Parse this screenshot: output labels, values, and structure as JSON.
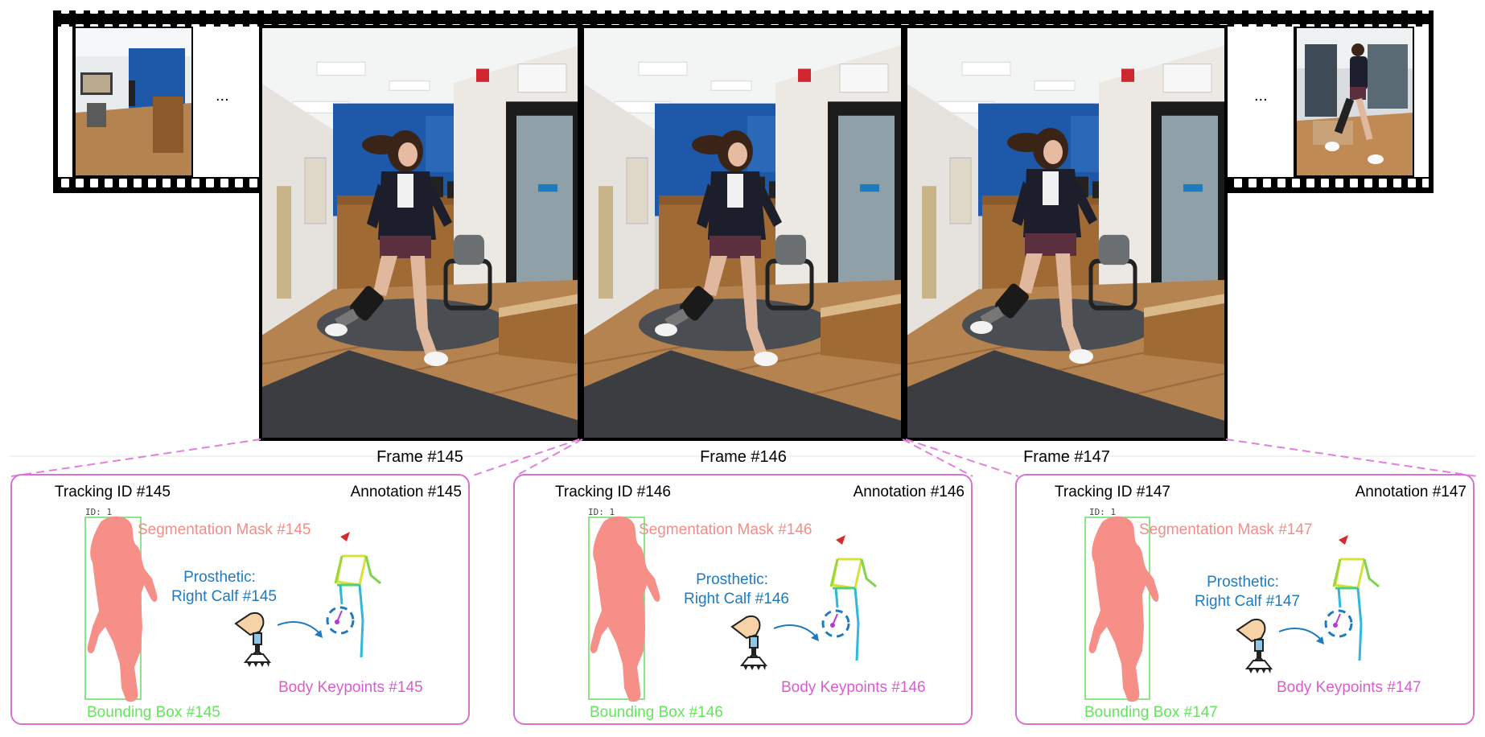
{
  "ellipsis": "...",
  "frames": [
    {
      "label": "Frame #145"
    },
    {
      "label": "Frame #146"
    },
    {
      "label": "Frame #147"
    }
  ],
  "annotations": [
    {
      "tracking": "Tracking ID #145",
      "annotation": "Annotation #145",
      "id_tag": "ID: 1",
      "segmentation": "Segmentation Mask #145",
      "prosthetic_line1": "Prosthetic:",
      "prosthetic_line2": "Right Calf #145",
      "keypoints": "Body Keypoints #145",
      "bbox": "Bounding Box #145"
    },
    {
      "tracking": "Tracking ID #146",
      "annotation": "Annotation #146",
      "id_tag": "ID: 1",
      "segmentation": "Segmentation Mask #146",
      "prosthetic_line1": "Prosthetic:",
      "prosthetic_line2": "Right Calf #146",
      "keypoints": "Body Keypoints #146",
      "bbox": "Bounding Box #146"
    },
    {
      "tracking": "Tracking ID #147",
      "annotation": "Annotation #147",
      "id_tag": "ID: 1",
      "segmentation": "Segmentation Mask #147",
      "prosthetic_line1": "Prosthetic:",
      "prosthetic_line2": "Right Calf #147",
      "keypoints": "Body Keypoints #147",
      "bbox": "Bounding Box #147"
    }
  ],
  "colors": {
    "film": "#000000",
    "panel_border": "#d673cf",
    "segmentation": "#f28e87",
    "prosthetic": "#1f7bbf",
    "keypoints": "#d75ed0",
    "bbox": "#62e65a",
    "wall_blue": "#1d59a8",
    "floor_wood": "#b5834f"
  }
}
